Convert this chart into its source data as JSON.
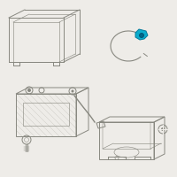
{
  "bg_color": "#eeece8",
  "line_color": "#888880",
  "highlight_color": "#00aacc",
  "fig_size": [
    2.0,
    2.0
  ],
  "dpi": 100
}
